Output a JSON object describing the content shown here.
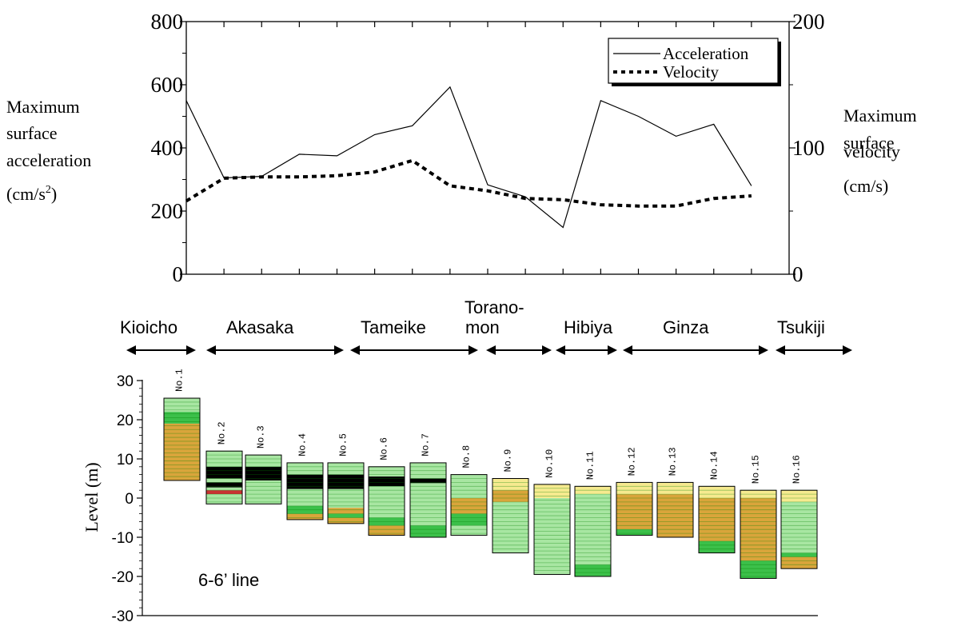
{
  "chart_data": [
    {
      "type": "line",
      "x": [
        1,
        2,
        3,
        4,
        5,
        6,
        7,
        8,
        9,
        10,
        11,
        12,
        13,
        14,
        15,
        16
      ],
      "series": [
        {
          "name": "Acceleration",
          "axis": "left",
          "style": "solid",
          "values": [
            550,
            305,
            310,
            380,
            375,
            442,
            470,
            593,
            283,
            245,
            148,
            550,
            500,
            437,
            475,
            280
          ]
        },
        {
          "name": "Velocity",
          "axis": "right",
          "style": "dotted",
          "values": [
            58,
            76,
            77,
            77,
            78,
            81,
            90,
            70,
            66,
            60,
            59,
            55,
            54,
            54,
            60,
            62
          ]
        }
      ],
      "left_axis": {
        "lines": [
          "Maximum",
          "surface",
          "acceleration",
          "(cm/s"
        ],
        "sup": "2",
        "close": ")",
        "ticks": [
          0,
          200,
          400,
          600,
          800
        ],
        "ylim": [
          0,
          800
        ]
      },
      "right_axis": {
        "lines": [
          "Maximum",
          "surface",
          "velocity",
          "(cm/s)"
        ],
        "ticks": [
          0,
          100,
          200
        ],
        "ylim": [
          0,
          200
        ]
      },
      "legend": {
        "position": "top-right"
      }
    },
    {
      "type": "bar",
      "title": "6-6’ line",
      "ylabel": "Level (m)",
      "yticks": [
        -30,
        -20,
        -10,
        0,
        10,
        20,
        30
      ],
      "ylim": [
        -30,
        30
      ],
      "categories": [
        "No.1",
        "No.2",
        "No.3",
        "No.4",
        "No.5",
        "No.6",
        "No.7",
        "No.8",
        "No.9",
        "No.10",
        "No.11",
        "No.12",
        "No.13",
        "No.14",
        "No.15",
        "No.16"
      ],
      "columns": [
        {
          "top": 25.5,
          "bottom": 4.5,
          "layers": [
            [
              "g",
              25.5,
              22
            ],
            [
              "dg",
              22,
              19
            ],
            [
              "o",
              19,
              4.5
            ]
          ]
        },
        {
          "top": 12,
          "bottom": -1.5,
          "layers": [
            [
              "g",
              12,
              8
            ],
            [
              "k",
              8,
              5
            ],
            [
              "g",
              5,
              4
            ],
            [
              "k",
              4,
              2.7
            ],
            [
              "g",
              2.7,
              2
            ],
            [
              "r",
              2,
              1
            ],
            [
              "g",
              1,
              -1.5
            ]
          ]
        },
        {
          "top": 11,
          "bottom": -1.5,
          "layers": [
            [
              "g",
              11,
              8
            ],
            [
              "k",
              8,
              4.5
            ],
            [
              "g",
              4.5,
              -1.5
            ]
          ]
        },
        {
          "top": 9,
          "bottom": -5.5,
          "layers": [
            [
              "g",
              9,
              6
            ],
            [
              "k",
              6,
              2.3
            ],
            [
              "g",
              2.3,
              -2
            ],
            [
              "dg",
              -2,
              -4
            ],
            [
              "o",
              -4,
              -5.5
            ]
          ]
        },
        {
          "top": 9,
          "bottom": -6.5,
          "layers": [
            [
              "g",
              9,
              6
            ],
            [
              "k",
              6,
              2.3
            ],
            [
              "g",
              2.3,
              -2.5
            ],
            [
              "o",
              -2.5,
              -4
            ],
            [
              "dg",
              -4,
              -5
            ],
            [
              "o",
              -5,
              -6.5
            ]
          ]
        },
        {
          "top": 8,
          "bottom": -9.5,
          "layers": [
            [
              "g",
              8,
              5.5
            ],
            [
              "k",
              5.5,
              3
            ],
            [
              "g",
              3,
              -5
            ],
            [
              "dg",
              -5,
              -7
            ],
            [
              "o",
              -7,
              -9.5
            ]
          ]
        },
        {
          "top": 9,
          "bottom": -10,
          "layers": [
            [
              "g",
              9,
              5
            ],
            [
              "k",
              5,
              3.8
            ],
            [
              "g",
              3.8,
              -7
            ],
            [
              "dg",
              -7,
              -10
            ]
          ]
        },
        {
          "top": 6,
          "bottom": -9.5,
          "layers": [
            [
              "g",
              6,
              0
            ],
            [
              "o",
              0,
              -4
            ],
            [
              "dg",
              -4,
              -7
            ],
            [
              "g",
              -7,
              -9.5
            ]
          ]
        },
        {
          "top": 5,
          "bottom": -14,
          "layers": [
            [
              "y",
              5,
              2
            ],
            [
              "o",
              2,
              -1
            ],
            [
              "g",
              -1,
              -14
            ]
          ]
        },
        {
          "top": 3.5,
          "bottom": -19.5,
          "layers": [
            [
              "y",
              3.5,
              0
            ],
            [
              "g",
              0,
              -19.5
            ]
          ]
        },
        {
          "top": 3,
          "bottom": -20,
          "layers": [
            [
              "y",
              3,
              1
            ],
            [
              "g",
              1,
              -17
            ],
            [
              "dg",
              -17,
              -20
            ]
          ]
        },
        {
          "top": 4,
          "bottom": -9.5,
          "layers": [
            [
              "y",
              4,
              1
            ],
            [
              "o",
              1,
              -8
            ],
            [
              "dg",
              -8,
              -9.5
            ]
          ]
        },
        {
          "top": 4,
          "bottom": -10,
          "layers": [
            [
              "y",
              4,
              1
            ],
            [
              "o",
              1,
              -10
            ]
          ]
        },
        {
          "top": 3,
          "bottom": -14,
          "layers": [
            [
              "y",
              3,
              0
            ],
            [
              "o",
              0,
              -11
            ],
            [
              "dg",
              -11,
              -14
            ]
          ]
        },
        {
          "top": 2,
          "bottom": -20.5,
          "layers": [
            [
              "y",
              2,
              0
            ],
            [
              "o",
              0,
              -16
            ],
            [
              "dg",
              -16,
              -20.5
            ]
          ]
        },
        {
          "top": 2,
          "bottom": -18,
          "layers": [
            [
              "y",
              2,
              -1
            ],
            [
              "g",
              -1,
              -14
            ],
            [
              "dg",
              -14,
              -15
            ],
            [
              "o",
              -15,
              -18
            ]
          ]
        }
      ]
    }
  ],
  "districts": [
    {
      "label": "Kioicho",
      "sub": ""
    },
    {
      "label": "Akasaka",
      "sub": ""
    },
    {
      "label": "Tameike",
      "sub": ""
    },
    {
      "label": "Torano-",
      "sub": "mon"
    },
    {
      "label": "Hibiya",
      "sub": ""
    },
    {
      "label": "Ginza",
      "sub": ""
    },
    {
      "label": "Tsukiji",
      "sub": ""
    }
  ],
  "colors": {
    "g": "#a8e6a2",
    "dg": "#3cc04a",
    "o": "#d9a53b",
    "y": "#f6ea8f",
    "k": "#000000",
    "r": "#c83232",
    "grid": "#00800066"
  }
}
